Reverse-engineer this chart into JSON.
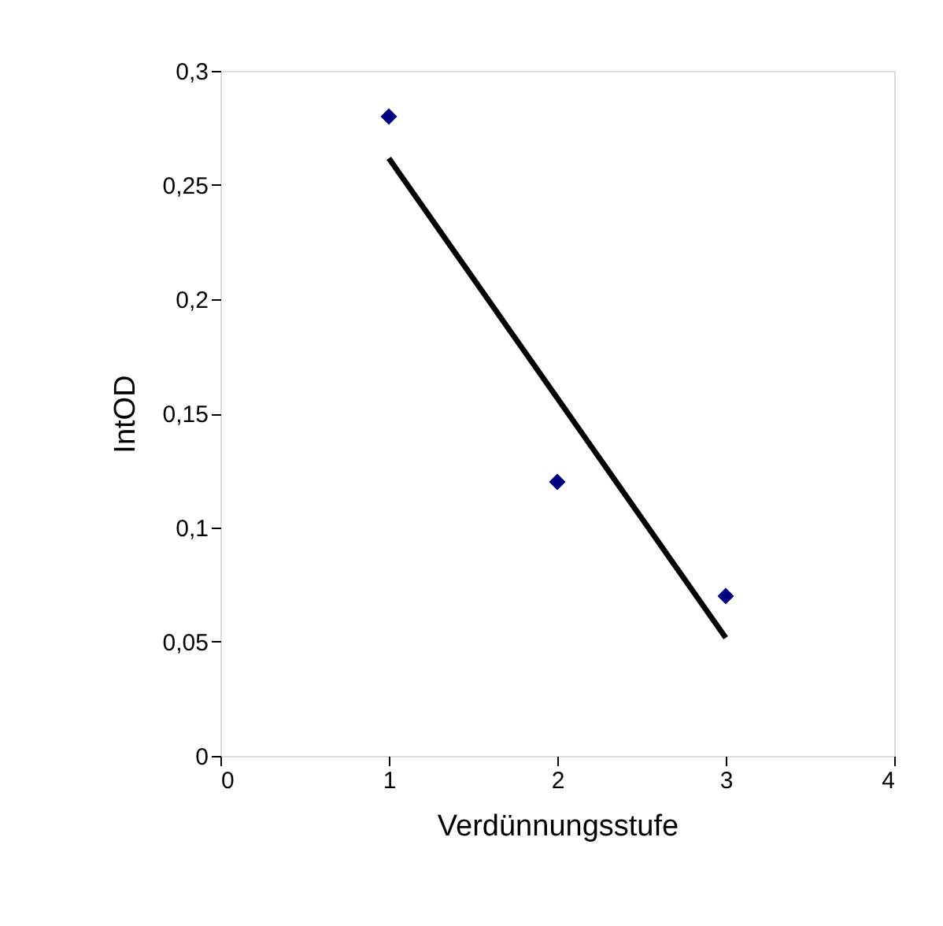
{
  "chart_data": {
    "type": "scatter",
    "xlabel": "Verdünnungsstufe",
    "ylabel": "IntOD",
    "xlim": [
      0,
      4
    ],
    "xticks": [
      0,
      1,
      2,
      3,
      4
    ],
    "ylim": [
      0,
      0.3
    ],
    "yticks": [
      0,
      {
        "value": 0.05,
        "label": "0,05"
      },
      {
        "value": 0.1,
        "label": "0,1"
      },
      {
        "value": 0.15,
        "label": "0,15"
      },
      {
        "value": 0.2,
        "label": "0,2"
      },
      {
        "value": 0.25,
        "label": "0,25"
      },
      {
        "value": 0.3,
        "label": "0,3"
      }
    ],
    "grid": false,
    "series": [
      {
        "type": "scatter",
        "marker": "diamond",
        "color": "#000080",
        "x": [
          1,
          2,
          3
        ],
        "values": [
          0.28,
          0.12,
          0.07
        ]
      },
      {
        "type": "line",
        "line_style": "solid",
        "color": "#000000",
        "x": [
          1,
          3
        ],
        "values": [
          0.2617,
          0.0517
        ]
      }
    ]
  }
}
